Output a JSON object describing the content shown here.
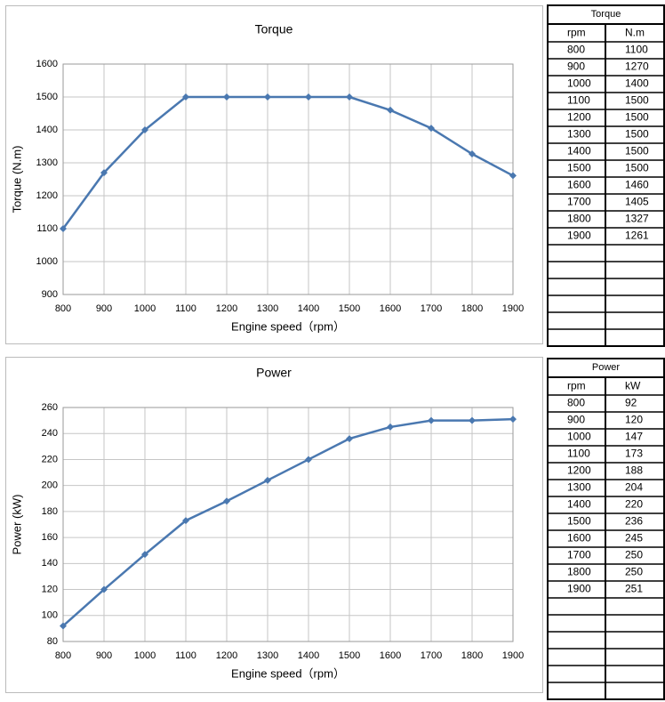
{
  "chart_data": [
    {
      "type": "line",
      "title": "Torque",
      "x_label": "Engine speed（rpm）",
      "y_label": "Torque (N.m)",
      "x": [
        800,
        900,
        1000,
        1100,
        1200,
        1300,
        1400,
        1500,
        1600,
        1700,
        1800,
        1900
      ],
      "values": [
        1100,
        1270,
        1400,
        1500,
        1500,
        1500,
        1500,
        1500,
        1460,
        1405,
        1327,
        1261
      ],
      "color": "#4a78b0",
      "xlim": [
        800,
        1900
      ],
      "xticks": [
        800,
        900,
        1000,
        1100,
        1200,
        1300,
        1400,
        1500,
        1600,
        1700,
        1800,
        1900
      ],
      "ylim": [
        900,
        1600
      ],
      "yticks": [
        900,
        1000,
        1100,
        1200,
        1300,
        1400,
        1500,
        1600
      ],
      "grid": true
    },
    {
      "type": "line",
      "title": "Power",
      "x_label": "Engine speed（rpm）",
      "y_label": "Power (kW)",
      "x": [
        800,
        900,
        1000,
        1100,
        1200,
        1300,
        1400,
        1500,
        1600,
        1700,
        1800,
        1900
      ],
      "values": [
        92,
        120,
        147,
        173,
        188,
        204,
        220,
        236,
        245,
        250,
        250,
        251
      ],
      "color": "#4a78b0",
      "xlim": [
        800,
        1900
      ],
      "xticks": [
        800,
        900,
        1000,
        1100,
        1200,
        1300,
        1400,
        1500,
        1600,
        1700,
        1800,
        1900
      ],
      "ylim": [
        80,
        260
      ],
      "yticks": [
        80,
        100,
        120,
        140,
        160,
        180,
        200,
        220,
        240,
        260
      ],
      "grid": true
    }
  ],
  "tables": [
    {
      "title": "Torque",
      "header": [
        "rpm",
        "N.m"
      ],
      "rows": [
        [
          800,
          1100
        ],
        [
          900,
          1270
        ],
        [
          1000,
          1400
        ],
        [
          1100,
          1500
        ],
        [
          1200,
          1500
        ],
        [
          1300,
          1500
        ],
        [
          1400,
          1500
        ],
        [
          1500,
          1500
        ],
        [
          1600,
          1460
        ],
        [
          1700,
          1405
        ],
        [
          1800,
          1327
        ],
        [
          1900,
          1261
        ]
      ]
    },
    {
      "title": "Power",
      "header": [
        "rpm",
        "kW"
      ],
      "rows": [
        [
          800,
          92
        ],
        [
          900,
          120
        ],
        [
          1000,
          147
        ],
        [
          1100,
          173
        ],
        [
          1200,
          188
        ],
        [
          1300,
          204
        ],
        [
          1400,
          220
        ],
        [
          1500,
          236
        ],
        [
          1600,
          245
        ],
        [
          1700,
          250
        ],
        [
          1800,
          250
        ],
        [
          1900,
          251
        ]
      ]
    }
  ]
}
